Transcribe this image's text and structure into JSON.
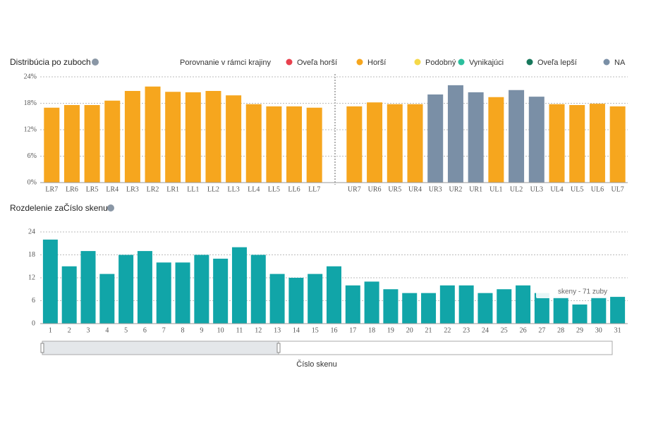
{
  "chart_data": [
    {
      "type": "bar",
      "title": "Distribúcia po zuboch",
      "legend_title": "Porovnanie v rámci krajiny",
      "legend": [
        {
          "name": "Oveľa horší",
          "color": "#e8414e"
        },
        {
          "name": "Horší",
          "color": "#f6a61e"
        },
        {
          "name": "Podobný",
          "color": "#f5d949"
        },
        {
          "name": "Vynikajúci",
          "color": "#2bbf9d"
        },
        {
          "name": "Oveľa lepší",
          "color": "#17785c"
        },
        {
          "name": "NA",
          "color": "#7a8fa6"
        }
      ],
      "groups": [
        {
          "categories": [
            "LR7",
            "LR6",
            "LR5",
            "LR4",
            "LR3",
            "LR2",
            "LR1",
            "LL1",
            "LL2",
            "LL3",
            "LL4",
            "LL5",
            "LL6",
            "LL7"
          ],
          "values": [
            17.0,
            17.6,
            17.6,
            18.6,
            20.8,
            21.8,
            20.6,
            20.5,
            20.8,
            19.8,
            17.8,
            17.3,
            17.3,
            17.0
          ],
          "colors": [
            "#f6a61e",
            "#f6a61e",
            "#f6a61e",
            "#f6a61e",
            "#f6a61e",
            "#f6a61e",
            "#f6a61e",
            "#f6a61e",
            "#f6a61e",
            "#f6a61e",
            "#f6a61e",
            "#f6a61e",
            "#f6a61e",
            "#f6a61e"
          ]
        },
        {
          "categories": [
            "UR7",
            "UR6",
            "UR5",
            "UR4",
            "UR3",
            "UR2",
            "UR1",
            "UL1",
            "UL2",
            "UL3",
            "UL4",
            "UL5",
            "UL6",
            "UL7"
          ],
          "values": [
            17.3,
            18.2,
            17.8,
            17.8,
            20.0,
            22.1,
            20.5,
            19.4,
            21.0,
            19.5,
            17.8,
            17.6,
            17.9,
            17.3
          ],
          "colors": [
            "#f6a61e",
            "#f6a61e",
            "#f6a61e",
            "#f6a61e",
            "#7a8fa6",
            "#7a8fa6",
            "#7a8fa6",
            "#f6a61e",
            "#7a8fa6",
            "#7a8fa6",
            "#f6a61e",
            "#f6a61e",
            "#f6a61e",
            "#f6a61e"
          ]
        }
      ],
      "ylim": [
        0,
        24
      ],
      "yticks": [
        {
          "value": 0,
          "label": "0%"
        },
        {
          "value": 6,
          "label": "6%"
        },
        {
          "value": 12,
          "label": "12%"
        },
        {
          "value": 18,
          "label": "18%"
        },
        {
          "value": 24,
          "label": "24%"
        }
      ],
      "grid": true
    },
    {
      "type": "bar",
      "title": "Rozdelenie zaČíslo skenu",
      "x_label": "Číslo skenu",
      "categories": [
        "1",
        "2",
        "3",
        "4",
        "5",
        "6",
        "7",
        "8",
        "9",
        "10",
        "11",
        "12",
        "13",
        "14",
        "15",
        "16",
        "17",
        "18",
        "19",
        "20",
        "21",
        "22",
        "23",
        "24",
        "25",
        "26",
        "27",
        "28",
        "29",
        "30",
        "31"
      ],
      "values": [
        22,
        15,
        19,
        13,
        18,
        19,
        16,
        16,
        18,
        17,
        20,
        18,
        13,
        12,
        13,
        15,
        10,
        11,
        9,
        8,
        8,
        10,
        10,
        8,
        9,
        10,
        8,
        7,
        5,
        7,
        7
      ],
      "color": "#11a5a8",
      "ylim": [
        0,
        24
      ],
      "yticks": [
        0,
        6,
        12,
        18,
        24
      ],
      "grid": true,
      "annotation": "skeny - 71 zuby"
    }
  ]
}
